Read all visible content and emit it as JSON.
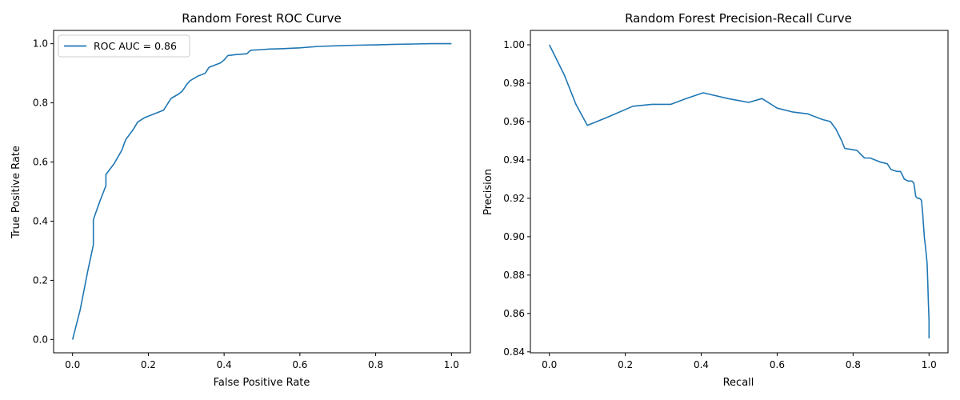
{
  "colors": {
    "line": "#1f77b4",
    "axes": "#000000",
    "background": "#ffffff",
    "legend_border": "#cccccc"
  },
  "chart_data": [
    {
      "type": "line",
      "title": "Random Forest ROC Curve",
      "xlabel": "False Positive Rate",
      "ylabel": "True Positive Rate",
      "xlim": [
        -0.05,
        1.05
      ],
      "ylim": [
        -0.045,
        1.045
      ],
      "xticks": [
        "0.0",
        "0.2",
        "0.4",
        "0.6",
        "0.8",
        "1.0"
      ],
      "yticks": [
        "0.0",
        "0.2",
        "0.4",
        "0.6",
        "0.8",
        "1.0"
      ],
      "grid": false,
      "legend": {
        "position": "upper-left",
        "entries": [
          "ROC AUC = 0.86"
        ]
      },
      "series": [
        {
          "name": "ROC AUC = 0.86",
          "x": [
            0.0,
            0.02,
            0.04,
            0.055,
            0.055,
            0.07,
            0.088,
            0.088,
            0.11,
            0.13,
            0.14,
            0.16,
            0.172,
            0.19,
            0.21,
            0.24,
            0.26,
            0.28,
            0.29,
            0.3,
            0.31,
            0.33,
            0.35,
            0.36,
            0.37,
            0.39,
            0.4,
            0.41,
            0.43,
            0.46,
            0.47,
            0.5,
            0.52,
            0.55,
            0.6,
            0.65,
            0.7,
            0.75,
            0.8,
            0.85,
            0.9,
            0.95,
            1.0
          ],
          "y": [
            0.0,
            0.1,
            0.23,
            0.32,
            0.405,
            0.46,
            0.52,
            0.558,
            0.595,
            0.64,
            0.675,
            0.71,
            0.735,
            0.75,
            0.76,
            0.775,
            0.815,
            0.83,
            0.84,
            0.86,
            0.875,
            0.89,
            0.9,
            0.92,
            0.925,
            0.935,
            0.945,
            0.96,
            0.963,
            0.966,
            0.978,
            0.98,
            0.982,
            0.983,
            0.986,
            0.991,
            0.993,
            0.995,
            0.996,
            0.998,
            0.999,
            1.0,
            1.0
          ]
        }
      ]
    },
    {
      "type": "line",
      "title": "Random Forest Precision-Recall Curve",
      "xlabel": "Recall",
      "ylabel": "Precision",
      "xlim": [
        -0.05,
        1.05
      ],
      "ylim": [
        0.8395,
        1.0075
      ],
      "xticks": [
        "0.0",
        "0.2",
        "0.4",
        "0.6",
        "0.8",
        "1.0"
      ],
      "yticks": [
        "0.84",
        "0.86",
        "0.88",
        "0.90",
        "0.92",
        "0.94",
        "0.96",
        "0.98",
        "1.00"
      ],
      "grid": false,
      "series": [
        {
          "name": "",
          "x": [
            0.0,
            0.04,
            0.07,
            0.1,
            0.15,
            0.22,
            0.27,
            0.32,
            0.36,
            0.405,
            0.47,
            0.525,
            0.56,
            0.6,
            0.64,
            0.68,
            0.72,
            0.74,
            0.755,
            0.77,
            0.778,
            0.81,
            0.83,
            0.845,
            0.87,
            0.89,
            0.9,
            0.915,
            0.925,
            0.935,
            0.945,
            0.955,
            0.96,
            0.965,
            0.97,
            0.975,
            0.98,
            0.983,
            0.985,
            0.988,
            0.99,
            0.993,
            0.995,
            0.997,
            0.998,
            0.999,
            1.0,
            1.0
          ],
          "y": [
            1.0,
            0.984,
            0.969,
            0.958,
            0.962,
            0.968,
            0.969,
            0.969,
            0.972,
            0.975,
            0.972,
            0.97,
            0.972,
            0.967,
            0.965,
            0.964,
            0.961,
            0.96,
            0.956,
            0.95,
            0.946,
            0.945,
            0.941,
            0.941,
            0.939,
            0.938,
            0.935,
            0.934,
            0.934,
            0.93,
            0.929,
            0.929,
            0.928,
            0.921,
            0.92,
            0.92,
            0.919,
            0.913,
            0.907,
            0.899,
            0.896,
            0.89,
            0.886,
            0.875,
            0.868,
            0.862,
            0.856,
            0.847
          ]
        }
      ]
    }
  ]
}
